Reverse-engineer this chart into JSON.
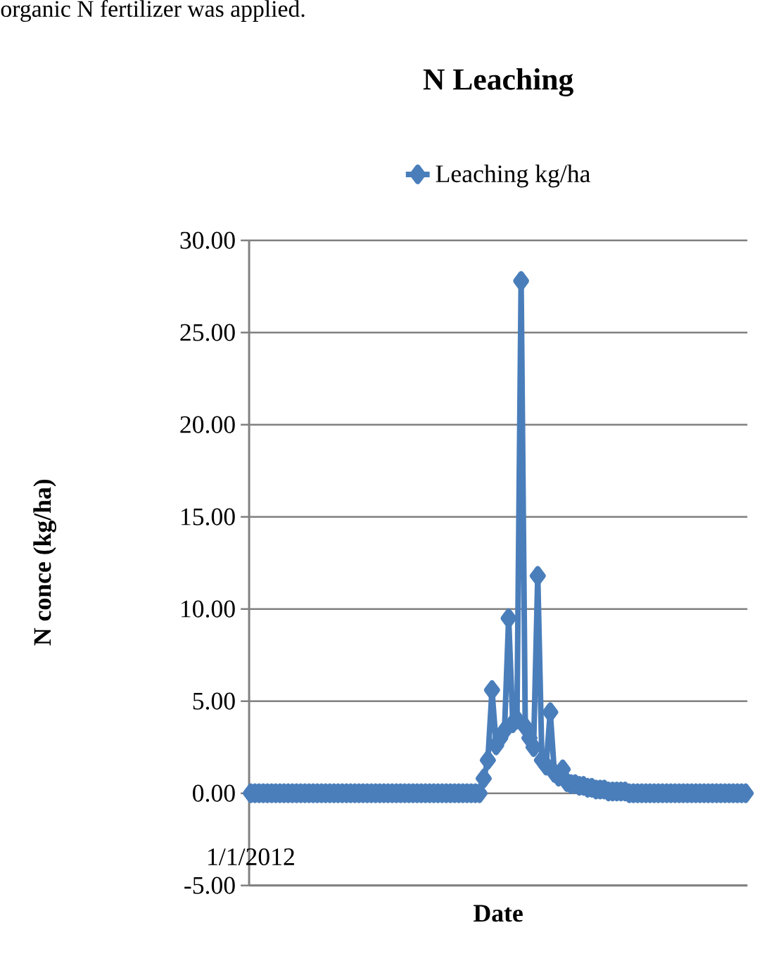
{
  "chart_data": {
    "type": "line",
    "title": "N Leaching",
    "xlabel": "Date",
    "ylabel": "N conce (kg/ha)",
    "annotations": [
      "organic N fertilizer was applied."
    ],
    "categories": [
      "1/1/2012",
      null,
      null,
      null,
      null,
      null,
      null,
      null,
      null,
      null,
      null,
      null,
      null,
      null,
      null,
      null,
      null,
      null,
      null,
      null,
      null,
      null,
      null,
      null,
      null,
      null,
      null,
      null,
      null,
      null,
      null,
      null,
      null,
      null,
      null,
      null,
      null,
      null,
      null,
      null,
      null,
      null,
      null,
      null,
      null,
      null,
      null,
      null,
      null,
      null,
      null,
      null,
      null,
      null,
      null,
      null,
      null,
      null,
      null,
      null,
      null,
      null,
      null,
      null,
      null,
      null,
      null,
      null,
      null,
      null,
      null,
      null,
      null,
      null,
      null,
      null,
      null,
      null,
      null,
      null,
      null,
      null,
      null,
      null,
      null,
      null,
      null,
      null,
      null,
      null,
      null,
      null,
      null,
      null,
      null,
      null,
      null,
      null,
      null,
      null,
      null,
      null,
      null,
      null,
      null,
      null,
      null,
      null,
      null,
      null,
      null,
      null,
      null,
      null,
      null,
      null,
      null,
      null,
      null,
      null
    ],
    "series": [
      {
        "name": "Leaching kg/ha",
        "color": "#4a7ebb",
        "values": [
          0,
          0,
          0,
          0,
          0,
          0,
          0,
          0,
          0,
          0,
          0,
          0,
          0,
          0,
          0,
          0,
          0,
          0,
          0,
          0,
          0,
          0,
          0,
          0,
          0,
          0,
          0,
          0,
          0,
          0,
          0,
          0,
          0,
          0,
          0,
          0,
          0,
          0,
          0,
          0,
          0,
          0,
          0,
          0,
          0,
          0,
          0,
          0,
          0,
          0,
          0,
          0,
          0,
          0,
          0,
          0,
          0.8,
          1.8,
          5.6,
          2.6,
          3.0,
          3.4,
          9.5,
          3.8,
          4.0,
          27.8,
          3.6,
          3.0,
          2.5,
          11.8,
          1.8,
          1.5,
          4.4,
          1.1,
          0.9,
          1.3,
          0.6,
          0.5,
          0.5,
          0.4,
          0.4,
          0.3,
          0.3,
          0.2,
          0.2,
          0.2,
          0.1,
          0.1,
          0.1,
          0.1,
          0.1,
          0,
          0,
          0,
          0,
          0,
          0,
          0,
          0,
          0,
          0,
          0,
          0,
          0,
          0,
          0,
          0,
          0,
          0,
          0,
          0,
          0,
          0,
          0,
          0,
          0,
          0,
          0,
          0,
          0
        ]
      }
    ],
    "ylim": [
      -5,
      30
    ],
    "yticks": [
      {
        "value": -5,
        "label": "-5.00"
      },
      {
        "value": 0,
        "label": "0.00"
      },
      {
        "value": 5,
        "label": "5.00"
      },
      {
        "value": 10,
        "label": "10.00"
      },
      {
        "value": 15,
        "label": "15.00"
      },
      {
        "value": 20,
        "label": "20.00"
      },
      {
        "value": 25,
        "label": "25.00"
      },
      {
        "value": 30,
        "label": "30.00"
      }
    ],
    "grid": "y",
    "legend": "top",
    "marker": "diamond",
    "line_style": "solid"
  }
}
